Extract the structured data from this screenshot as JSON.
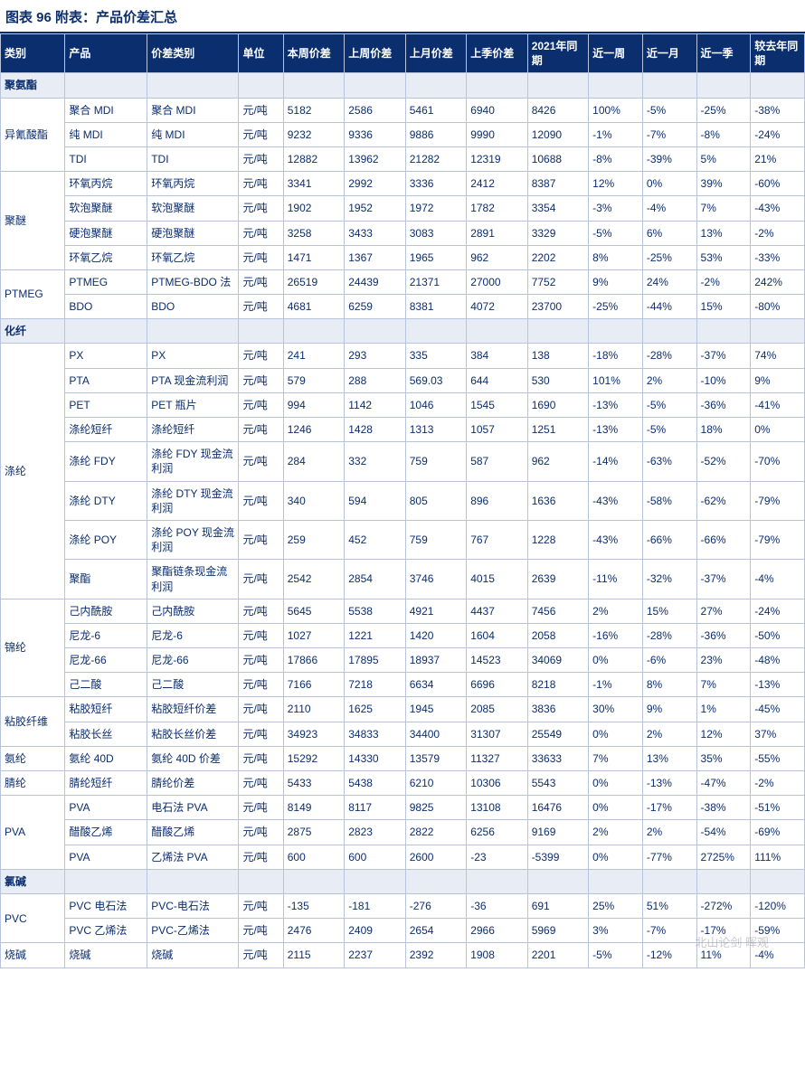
{
  "title": "图表 96  附表：产品价差汇总",
  "watermark": "北山论剑 晖观",
  "columns": [
    "类别",
    "产品",
    "价差类别",
    "单位",
    "本周价差",
    "上周价差",
    "上月价差",
    "上季价差",
    "2021年同期",
    "近一周",
    "近一月",
    "近一季",
    "较去年同期"
  ],
  "colors": {
    "header_bg": "#0b2e6f",
    "header_fg": "#ffffff",
    "border": "#b8c4dc",
    "text": "#0b2e6f",
    "section_bg": "#e8edf5",
    "title_color": "#0b2e6f",
    "bg": "#ffffff"
  },
  "fonts": {
    "title_pt": 15,
    "body_pt": 12
  },
  "sections": [
    {
      "label": "聚氨酯",
      "groups": [
        {
          "category": "异氰酸酯",
          "rows": [
            {
              "p": "聚合 MDI",
              "pt": "聚合 MDI",
              "u": "元/吨",
              "v": [
                "5182",
                "2586",
                "5461",
                "6940",
                "8426"
              ],
              "pc": [
                "100%",
                "-5%",
                "-25%",
                "-38%"
              ]
            },
            {
              "p": "纯 MDI",
              "pt": "纯 MDI",
              "u": "元/吨",
              "v": [
                "9232",
                "9336",
                "9886",
                "9990",
                "12090"
              ],
              "pc": [
                "-1%",
                "-7%",
                "-8%",
                "-24%"
              ]
            },
            {
              "p": "TDI",
              "pt": "TDI",
              "u": "元/吨",
              "v": [
                "12882",
                "13962",
                "21282",
                "12319",
                "10688"
              ],
              "pc": [
                "-8%",
                "-39%",
                "5%",
                "21%"
              ]
            }
          ]
        },
        {
          "category": "聚醚",
          "rows": [
            {
              "p": "环氧丙烷",
              "pt": "环氧丙烷",
              "u": "元/吨",
              "v": [
                "3341",
                "2992",
                "3336",
                "2412",
                "8387"
              ],
              "pc": [
                "12%",
                "0%",
                "39%",
                "-60%"
              ]
            },
            {
              "p": "软泡聚醚",
              "pt": "软泡聚醚",
              "u": "元/吨",
              "v": [
                "1902",
                "1952",
                "1972",
                "1782",
                "3354"
              ],
              "pc": [
                "-3%",
                "-4%",
                "7%",
                "-43%"
              ]
            },
            {
              "p": "硬泡聚醚",
              "pt": "硬泡聚醚",
              "u": "元/吨",
              "v": [
                "3258",
                "3433",
                "3083",
                "2891",
                "3329"
              ],
              "pc": [
                "-5%",
                "6%",
                "13%",
                "-2%"
              ]
            },
            {
              "p": "环氧乙烷",
              "pt": "环氧乙烷",
              "u": "元/吨",
              "v": [
                "1471",
                "1367",
                "1965",
                "962",
                "2202"
              ],
              "pc": [
                "8%",
                "-25%",
                "53%",
                "-33%"
              ]
            }
          ]
        },
        {
          "category": "PTMEG",
          "rows": [
            {
              "p": "PTMEG",
              "pt": "PTMEG-BDO 法",
              "u": "元/吨",
              "v": [
                "26519",
                "24439",
                "21371",
                "27000",
                "7752"
              ],
              "pc": [
                "9%",
                "24%",
                "-2%",
                "242%"
              ]
            },
            {
              "p": "BDO",
              "pt": "BDO",
              "u": "元/吨",
              "v": [
                "4681",
                "6259",
                "8381",
                "4072",
                "23700"
              ],
              "pc": [
                "-25%",
                "-44%",
                "15%",
                "-80%"
              ]
            }
          ]
        }
      ]
    },
    {
      "label": "化纤",
      "groups": [
        {
          "category": "涤纶",
          "rows": [
            {
              "p": "PX",
              "pt": "PX",
              "u": "元/吨",
              "v": [
                "241",
                "293",
                "335",
                "384",
                "138"
              ],
              "pc": [
                "-18%",
                "-28%",
                "-37%",
                "74%"
              ]
            },
            {
              "p": "PTA",
              "pt": "PTA 现金流利润",
              "u": "元/吨",
              "v": [
                "579",
                "288",
                "569.03",
                "644",
                "530"
              ],
              "pc": [
                "101%",
                "2%",
                "-10%",
                "9%"
              ]
            },
            {
              "p": "PET",
              "pt": "PET 瓶片",
              "u": "元/吨",
              "v": [
                "994",
                "1142",
                "1046",
                "1545",
                "1690"
              ],
              "pc": [
                "-13%",
                "-5%",
                "-36%",
                "-41%"
              ]
            },
            {
              "p": "涤纶短纤",
              "pt": "涤纶短纤",
              "u": "元/吨",
              "v": [
                "1246",
                "1428",
                "1313",
                "1057",
                "1251"
              ],
              "pc": [
                "-13%",
                "-5%",
                "18%",
                "0%"
              ]
            },
            {
              "p": "涤纶 FDY",
              "pt": "涤纶 FDY 现金流利润",
              "u": "元/吨",
              "v": [
                "284",
                "332",
                "759",
                "587",
                "962"
              ],
              "pc": [
                "-14%",
                "-63%",
                "-52%",
                "-70%"
              ]
            },
            {
              "p": "涤纶 DTY",
              "pt": "涤纶 DTY 现金流利润",
              "u": "元/吨",
              "v": [
                "340",
                "594",
                "805",
                "896",
                "1636"
              ],
              "pc": [
                "-43%",
                "-58%",
                "-62%",
                "-79%"
              ]
            },
            {
              "p": "涤纶 POY",
              "pt": "涤纶 POY 现金流利润",
              "u": "元/吨",
              "v": [
                "259",
                "452",
                "759",
                "767",
                "1228"
              ],
              "pc": [
                "-43%",
                "-66%",
                "-66%",
                "-79%"
              ]
            },
            {
              "p": "聚酯",
              "pt": "聚酯链条现金流利润",
              "u": "元/吨",
              "v": [
                "2542",
                "2854",
                "3746",
                "4015",
                "2639"
              ],
              "pc": [
                "-11%",
                "-32%",
                "-37%",
                "-4%"
              ]
            }
          ]
        },
        {
          "category": "锦纶",
          "rows": [
            {
              "p": "己内酰胺",
              "pt": "己内酰胺",
              "u": "元/吨",
              "v": [
                "5645",
                "5538",
                "4921",
                "4437",
                "7456"
              ],
              "pc": [
                "2%",
                "15%",
                "27%",
                "-24%"
              ]
            },
            {
              "p": "尼龙-6",
              "pt": "尼龙-6",
              "u": "元/吨",
              "v": [
                "1027",
                "1221",
                "1420",
                "1604",
                "2058"
              ],
              "pc": [
                "-16%",
                "-28%",
                "-36%",
                "-50%"
              ]
            },
            {
              "p": "尼龙-66",
              "pt": "尼龙-66",
              "u": "元/吨",
              "v": [
                "17866",
                "17895",
                "18937",
                "14523",
                "34069"
              ],
              "pc": [
                "0%",
                "-6%",
                "23%",
                "-48%"
              ]
            },
            {
              "p": "己二酸",
              "pt": "己二酸",
              "u": "元/吨",
              "v": [
                "7166",
                "7218",
                "6634",
                "6696",
                "8218"
              ],
              "pc": [
                "-1%",
                "8%",
                "7%",
                "-13%"
              ]
            }
          ]
        },
        {
          "category": "粘胶纤维",
          "rows": [
            {
              "p": "粘胶短纤",
              "pt": "粘胶短纤价差",
              "u": "元/吨",
              "v": [
                "2110",
                "1625",
                "1945",
                "2085",
                "3836"
              ],
              "pc": [
                "30%",
                "9%",
                "1%",
                "-45%"
              ]
            },
            {
              "p": "粘胶长丝",
              "pt": "粘胶长丝价差",
              "u": "元/吨",
              "v": [
                "34923",
                "34833",
                "34400",
                "31307",
                "25549"
              ],
              "pc": [
                "0%",
                "2%",
                "12%",
                "37%"
              ]
            }
          ]
        },
        {
          "category": "氨纶",
          "rows": [
            {
              "p": "氨纶 40D",
              "pt": "氨纶 40D 价差",
              "u": "元/吨",
              "v": [
                "15292",
                "14330",
                "13579",
                "11327",
                "33633"
              ],
              "pc": [
                "7%",
                "13%",
                "35%",
                "-55%"
              ]
            }
          ]
        },
        {
          "category": "腈纶",
          "rows": [
            {
              "p": "腈纶短纤",
              "pt": "腈纶价差",
              "u": "元/吨",
              "v": [
                "5433",
                "5438",
                "6210",
                "10306",
                "5543"
              ],
              "pc": [
                "0%",
                "-13%",
                "-47%",
                "-2%"
              ]
            }
          ]
        },
        {
          "category": "PVA",
          "rows": [
            {
              "p": "PVA",
              "pt": "电石法 PVA",
              "u": "元/吨",
              "v": [
                "8149",
                "8117",
                "9825",
                "13108",
                "16476"
              ],
              "pc": [
                "0%",
                "-17%",
                "-38%",
                "-51%"
              ]
            },
            {
              "p": "醋酸乙烯",
              "pt": "醋酸乙烯",
              "u": "元/吨",
              "v": [
                "2875",
                "2823",
                "2822",
                "6256",
                "9169"
              ],
              "pc": [
                "2%",
                "2%",
                "-54%",
                "-69%"
              ]
            },
            {
              "p": "PVA",
              "pt": "乙烯法 PVA",
              "u": "元/吨",
              "v": [
                "600",
                "600",
                "2600",
                "-23",
                "-5399"
              ],
              "pc": [
                "0%",
                "-77%",
                "2725%",
                "111%"
              ]
            }
          ]
        }
      ]
    },
    {
      "label": "氯碱",
      "groups": [
        {
          "category": "PVC",
          "rows": [
            {
              "p": "PVC 电石法",
              "pt": "PVC-电石法",
              "u": "元/吨",
              "v": [
                "-135",
                "-181",
                "-276",
                "-36",
                "691"
              ],
              "pc": [
                "25%",
                "51%",
                "-272%",
                "-120%"
              ]
            },
            {
              "p": "PVC 乙烯法",
              "pt": "PVC-乙烯法",
              "u": "元/吨",
              "v": [
                "2476",
                "2409",
                "2654",
                "2966",
                "5969"
              ],
              "pc": [
                "3%",
                "-7%",
                "-17%",
                "-59%"
              ]
            }
          ]
        },
        {
          "category": "烧碱",
          "rows": [
            {
              "p": "烧碱",
              "pt": "烧碱",
              "u": "元/吨",
              "v": [
                "2115",
                "2237",
                "2392",
                "1908",
                "2201"
              ],
              "pc": [
                "-5%",
                "-12%",
                "11%",
                "-4%"
              ]
            }
          ]
        }
      ]
    }
  ]
}
